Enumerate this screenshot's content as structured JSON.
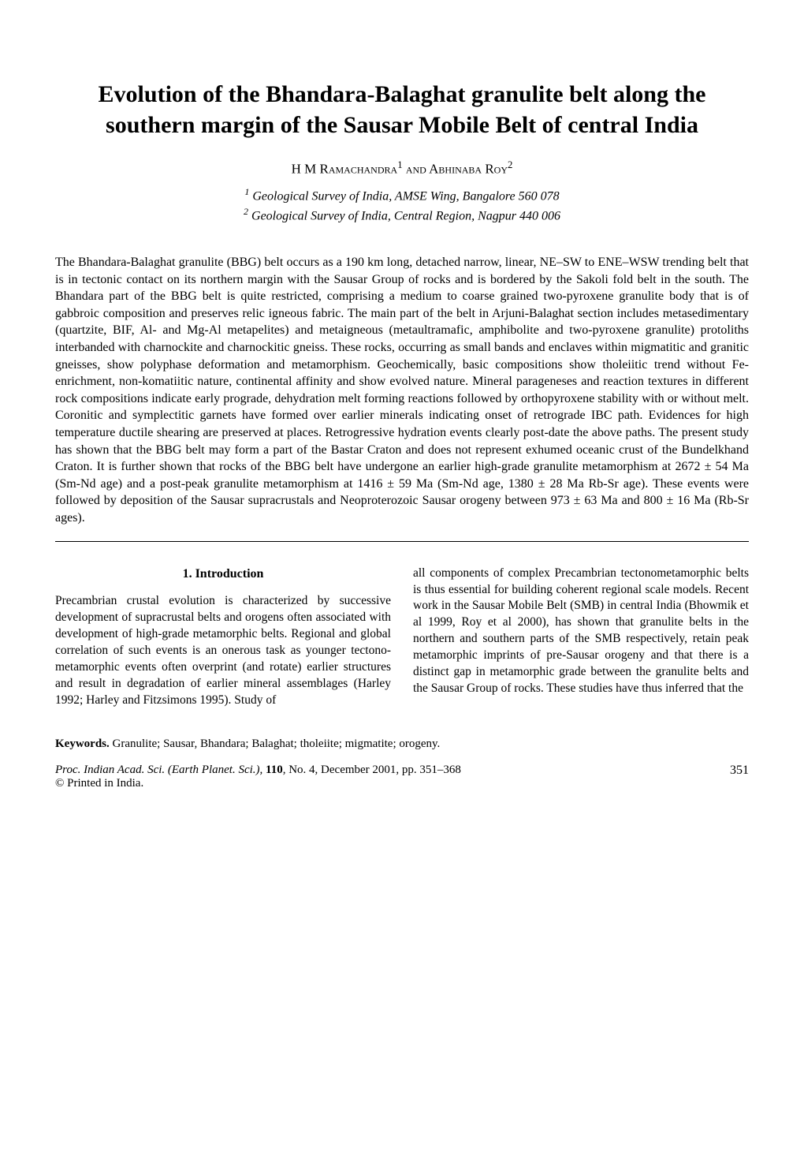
{
  "title": "Evolution of the Bhandara-Balaghat granulite belt along the southern margin of the Sausar Mobile Belt of central India",
  "authors_html": "H M Ramachandra<sup>1</sup> and Abhinaba Roy<sup>2</sup>",
  "affiliations": [
    "1 Geological Survey of India, AMSE Wing, Bangalore 560 078",
    "2 Geological Survey of India, Central Region, Nagpur 440 006"
  ],
  "abstract": "The Bhandara-Balaghat granulite (BBG) belt occurs as a 190 km long, detached narrow, linear, NE–SW to ENE–WSW trending belt that is in tectonic contact on its northern margin with the Sausar Group of rocks and is bordered by the Sakoli fold belt in the south. The Bhandara part of the BBG belt is quite restricted, comprising a medium to coarse grained two-pyroxene granulite body that is of gabbroic composition and preserves relic igneous fabric. The main part of the belt in Arjuni-Balaghat section includes metasedimentary (quartzite, BIF, Al- and Mg-Al metapelites) and metaigneous (metaultramafic, amphibolite and two-pyroxene granulite) protoliths interbanded with charnockite and charnockitic gneiss. These rocks, occurring as small bands and enclaves within migmatitic and granitic gneisses, show polyphase deformation and metamorphism. Geochemically, basic compositions show tholeiitic trend without Fe-enrichment, non-komatiitic nature, continental affinity and show evolved nature. Mineral parageneses and reaction textures in different rock compositions indicate early prograde, dehydration melt forming reactions followed by orthopyroxene stability with or without melt. Coronitic and symplectitic garnets have formed over earlier minerals indicating onset of retrograde IBC path. Evidences for high temperature ductile shearing are preserved at places. Retrogressive hydration events clearly post-date the above paths. The present study has shown that the BBG belt may form a part of the Bastar Craton and does not represent exhumed oceanic crust of the Bundelkhand Craton. It is further shown that rocks of the BBG belt have undergone an earlier high-grade granulite metamorphism at 2672 ± 54 Ma (Sm-Nd age) and a post-peak granulite metamorphism at 1416 ± 59 Ma (Sm-Nd age, 1380 ± 28 Ma Rb-Sr age). These events were followed by deposition of the Sausar supracrustals and Neoproterozoic Sausar orogeny between 973 ± 63 Ma and 800 ± 16 Ma (Rb-Sr ages).",
  "section_heading": "1. Introduction",
  "col_left": "Precambrian crustal evolution is characterized by successive development of supracrustal belts and orogens often associated with development of high-grade metamorphic belts. Regional and global correlation of such events is an onerous task as younger tectono-metamorphic events often overprint (and rotate) earlier structures and result in degradation of earlier mineral assemblages (Harley 1992; Harley and Fitzsimons 1995). Study of",
  "col_right": "all components of complex Precambrian tectonometamorphic belts is thus essential for building coherent regional scale models. Recent work in the Sausar Mobile Belt (SMB) in central India (Bhowmik et al 1999, Roy et al 2000), has shown that granulite belts in the northern and southern parts of the SMB respectively, retain peak metamorphic imprints of pre-Sausar orogeny and that there is a distinct gap in metamorphic grade between the granulite belts and the Sausar Group of rocks. These studies have thus inferred that the",
  "keywords_label": "Keywords.",
  "keywords_text": " Granulite; Sausar, Bhandara; Balaghat; tholeiite; migmatite; orogeny.",
  "journal_ref": "Proc. Indian Acad. Sci. (Earth Planet. Sci.), 110, No. 4, December 2001, pp. 351–368",
  "printed_in": "© Printed in India.",
  "page_number": "351"
}
